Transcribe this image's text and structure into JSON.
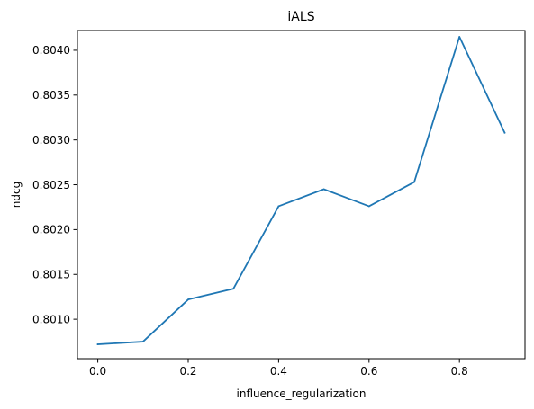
{
  "chart_data": {
    "type": "line",
    "title": "iALS",
    "xlabel": "influence_regularization",
    "ylabel": "ndcg",
    "grid": false,
    "xlim": [
      -0.045,
      0.945
    ],
    "ylim": [
      0.80056,
      0.80422
    ],
    "x_ticks": [
      0.0,
      0.2,
      0.4,
      0.6,
      0.8
    ],
    "x_tick_labels": [
      "0.0",
      "0.2",
      "0.4",
      "0.6",
      "0.8"
    ],
    "y_ticks": [
      0.801,
      0.8015,
      0.802,
      0.8025,
      0.803,
      0.8035,
      0.804
    ],
    "y_tick_labels": [
      "0.8010",
      "0.8015",
      "0.8020",
      "0.8025",
      "0.8030",
      "0.8035",
      "0.8040"
    ],
    "series": [
      {
        "color": "#1f77b4",
        "x": [
          0.0,
          0.1,
          0.2,
          0.3,
          0.4,
          0.5,
          0.6,
          0.7,
          0.8,
          0.9
        ],
        "y": [
          0.80072,
          0.80075,
          0.80122,
          0.80134,
          0.80226,
          0.80245,
          0.80226,
          0.80253,
          0.80415,
          0.80308
        ]
      }
    ]
  }
}
